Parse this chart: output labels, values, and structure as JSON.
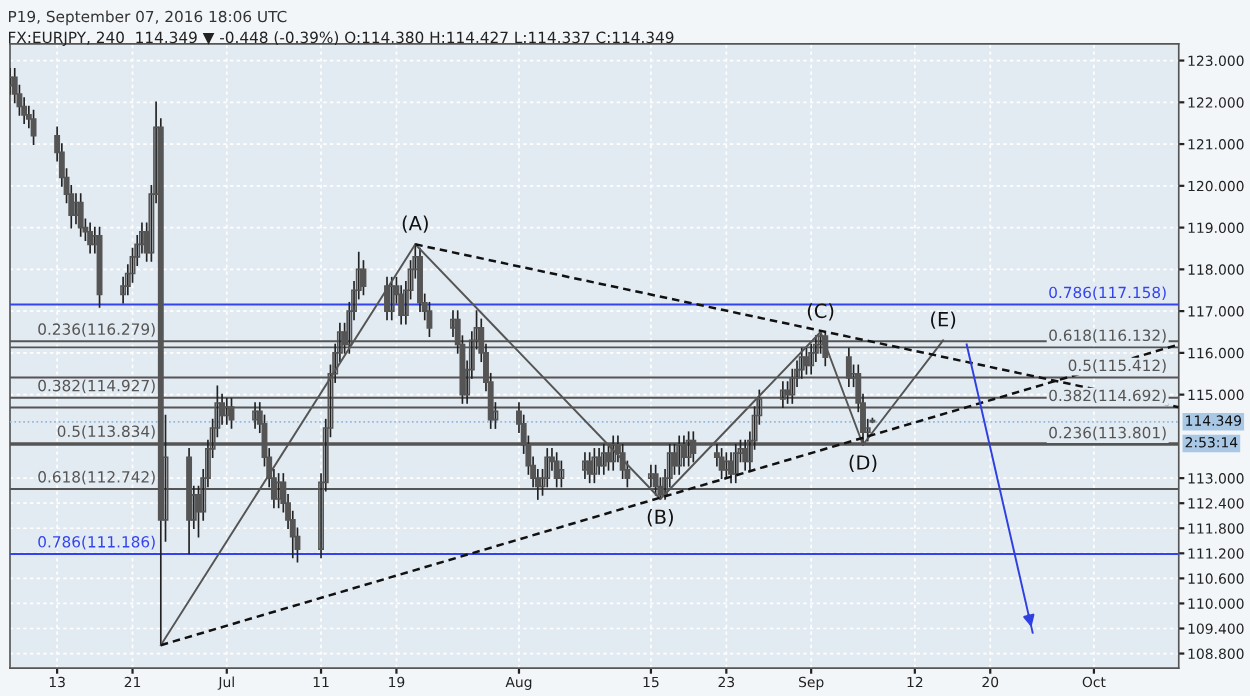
{
  "chart_data": {
    "type": "candlestick",
    "title": "P19, September 07, 2016 18:06 UTC",
    "subtitle": "FX:EURJPY, 240  114.349 ▼ -0.448 (-0.39%) O:114.380 H:114.427 L:114.337 C:114.349",
    "color": "#555555",
    "x": [
      "2016-06-08T00:00",
      "2016-06-08T12:00",
      "2016-06-09T00:00",
      "2016-06-09T12:00",
      "2016-06-10T00:00",
      "2016-06-10T12:00",
      "2016-06-13T00:00",
      "2016-06-13T12:00",
      "2016-06-14T00:00",
      "2016-06-14T12:00",
      "2016-06-15T00:00",
      "2016-06-15T12:00",
      "2016-06-16T00:00",
      "2016-06-16T12:00",
      "2016-06-17T00:00",
      "2016-06-17T12:00",
      "2016-06-20T00:00",
      "2016-06-20T12:00",
      "2016-06-21T00:00",
      "2016-06-21T12:00",
      "2016-06-22T00:00",
      "2016-06-22T12:00",
      "2016-06-23T00:00",
      "2016-06-23T12:00",
      "2016-06-24T00:00",
      "2016-06-24T12:00",
      "2016-06-27T00:00",
      "2016-06-27T12:00",
      "2016-06-28T00:00",
      "2016-06-28T12:00",
      "2016-06-29T00:00",
      "2016-06-29T12:00",
      "2016-06-30T00:00",
      "2016-06-30T12:00",
      "2016-07-01T00:00",
      "2016-07-01T12:00",
      "2016-07-04T00:00",
      "2016-07-04T12:00",
      "2016-07-05T00:00",
      "2016-07-05T12:00",
      "2016-07-06T00:00",
      "2016-07-06T12:00",
      "2016-07-07T00:00",
      "2016-07-07T12:00",
      "2016-07-08T00:00",
      "2016-07-08T12:00",
      "2016-07-11T00:00",
      "2016-07-11T12:00",
      "2016-07-12T00:00",
      "2016-07-12T12:00",
      "2016-07-13T00:00",
      "2016-07-13T12:00",
      "2016-07-14T00:00",
      "2016-07-14T12:00",
      "2016-07-15T00:00",
      "2016-07-15T12:00",
      "2016-07-18T00:00",
      "2016-07-18T12:00",
      "2016-07-19T00:00",
      "2016-07-19T12:00",
      "2016-07-20T00:00",
      "2016-07-20T12:00",
      "2016-07-21T00:00",
      "2016-07-21T12:00",
      "2016-07-22T00:00",
      "2016-07-22T12:00",
      "2016-07-25T00:00",
      "2016-07-25T12:00",
      "2016-07-26T00:00",
      "2016-07-26T12:00",
      "2016-07-27T00:00",
      "2016-07-27T12:00",
      "2016-07-28T00:00",
      "2016-07-28T12:00",
      "2016-07-29T00:00",
      "2016-07-29T12:00",
      "2016-08-01T00:00",
      "2016-08-01T12:00",
      "2016-08-02T00:00",
      "2016-08-02T12:00",
      "2016-08-03T00:00",
      "2016-08-03T12:00",
      "2016-08-04T00:00",
      "2016-08-04T12:00",
      "2016-08-05T00:00",
      "2016-08-05T12:00",
      "2016-08-08T00:00",
      "2016-08-08T12:00",
      "2016-08-09T00:00",
      "2016-08-09T12:00",
      "2016-08-10T00:00",
      "2016-08-10T12:00",
      "2016-08-11T00:00",
      "2016-08-11T12:00",
      "2016-08-12T00:00",
      "2016-08-12T12:00",
      "2016-08-15T00:00",
      "2016-08-15T12:00",
      "2016-08-16T00:00",
      "2016-08-16T12:00",
      "2016-08-17T00:00",
      "2016-08-17T12:00",
      "2016-08-18T00:00",
      "2016-08-18T12:00",
      "2016-08-19T00:00",
      "2016-08-19T12:00",
      "2016-08-22T00:00",
      "2016-08-22T12:00",
      "2016-08-23T00:00",
      "2016-08-23T12:00",
      "2016-08-24T00:00",
      "2016-08-24T12:00",
      "2016-08-25T00:00",
      "2016-08-25T12:00",
      "2016-08-26T00:00",
      "2016-08-26T12:00",
      "2016-08-29T00:00",
      "2016-08-29T12:00",
      "2016-08-30T00:00",
      "2016-08-30T12:00",
      "2016-08-31T00:00",
      "2016-08-31T12:00",
      "2016-09-01T00:00",
      "2016-09-01T12:00",
      "2016-09-02T00:00",
      "2016-09-02T12:00",
      "2016-09-05T00:00",
      "2016-09-05T12:00",
      "2016-09-06T00:00",
      "2016-09-06T12:00",
      "2016-09-07T00:00",
      "2016-09-07T12:00"
    ],
    "ohlc": [
      [
        122.4,
        122.8,
        122.2,
        122.6
      ],
      [
        122.6,
        122.8,
        122.0,
        122.2
      ],
      [
        122.2,
        122.4,
        121.7,
        121.9
      ],
      [
        121.9,
        122.1,
        121.5,
        121.7
      ],
      [
        121.7,
        121.9,
        121.4,
        121.6
      ],
      [
        121.6,
        121.8,
        121.0,
        121.2
      ],
      [
        121.2,
        121.4,
        120.6,
        120.8
      ],
      [
        120.8,
        121.0,
        120.0,
        120.2
      ],
      [
        120.2,
        120.4,
        119.6,
        119.8
      ],
      [
        119.8,
        120.0,
        119.0,
        119.3
      ],
      [
        119.3,
        119.8,
        119.1,
        119.6
      ],
      [
        119.6,
        119.8,
        118.8,
        119.0
      ],
      [
        119.0,
        119.2,
        118.7,
        118.9
      ],
      [
        118.9,
        119.1,
        118.4,
        118.6
      ],
      [
        118.6,
        119.0,
        118.4,
        118.8
      ],
      [
        118.8,
        119.0,
        117.1,
        117.4
      ],
      [
        117.4,
        117.8,
        117.2,
        117.6
      ],
      [
        117.6,
        118.1,
        117.4,
        117.9
      ],
      [
        117.9,
        118.5,
        117.7,
        118.3
      ],
      [
        118.3,
        118.8,
        118.1,
        118.6
      ],
      [
        118.6,
        119.1,
        118.4,
        118.9
      ],
      [
        118.9,
        119.1,
        118.2,
        118.4
      ],
      [
        118.4,
        120.0,
        118.2,
        119.8
      ],
      [
        119.8,
        122.0,
        119.6,
        121.4
      ],
      [
        121.4,
        121.6,
        109.0,
        112.0
      ],
      [
        112.0,
        114.5,
        111.5,
        113.5
      ],
      [
        113.5,
        113.7,
        111.2,
        112.0
      ],
      [
        112.0,
        112.8,
        111.8,
        112.6
      ],
      [
        112.6,
        112.8,
        111.6,
        112.2
      ],
      [
        112.2,
        113.2,
        112.0,
        113.0
      ],
      [
        113.0,
        113.9,
        112.8,
        113.7
      ],
      [
        113.7,
        114.4,
        113.5,
        114.2
      ],
      [
        114.2,
        115.2,
        114.0,
        114.8
      ],
      [
        114.8,
        115.0,
        114.3,
        114.5
      ],
      [
        114.5,
        114.9,
        114.3,
        114.7
      ],
      [
        114.7,
        114.9,
        114.2,
        114.4
      ],
      [
        114.4,
        114.8,
        114.2,
        114.6
      ],
      [
        114.6,
        114.8,
        114.1,
        114.3
      ],
      [
        114.3,
        114.5,
        113.3,
        113.5
      ],
      [
        113.5,
        113.7,
        112.8,
        113.0
      ],
      [
        113.0,
        113.2,
        112.3,
        112.5
      ],
      [
        112.5,
        113.1,
        112.3,
        112.9
      ],
      [
        112.9,
        113.1,
        112.2,
        112.4
      ],
      [
        112.4,
        112.6,
        111.8,
        112.0
      ],
      [
        112.0,
        112.2,
        111.1,
        111.6
      ],
      [
        111.6,
        111.8,
        111.0,
        111.3
      ],
      [
        111.3,
        113.1,
        111.1,
        112.9
      ],
      [
        112.9,
        114.4,
        112.7,
        114.2
      ],
      [
        114.2,
        115.7,
        114.0,
        115.5
      ],
      [
        115.5,
        116.2,
        115.3,
        116.0
      ],
      [
        116.0,
        116.7,
        115.8,
        116.5
      ],
      [
        116.5,
        116.7,
        116.0,
        116.2
      ],
      [
        116.2,
        117.2,
        116.0,
        117.0
      ],
      [
        117.0,
        117.7,
        116.8,
        117.5
      ],
      [
        117.5,
        118.4,
        117.3,
        118.0
      ],
      [
        118.0,
        118.2,
        117.4,
        117.6
      ],
      [
        117.6,
        117.8,
        116.8,
        117.0
      ],
      [
        117.0,
        117.8,
        116.8,
        117.6
      ],
      [
        117.6,
        117.8,
        117.2,
        117.4
      ],
      [
        117.4,
        117.6,
        116.7,
        116.9
      ],
      [
        116.9,
        117.7,
        116.7,
        117.5
      ],
      [
        117.5,
        118.2,
        117.3,
        118.0
      ],
      [
        118.0,
        118.6,
        117.8,
        118.3
      ],
      [
        118.3,
        118.5,
        117.0,
        117.2
      ],
      [
        117.2,
        117.4,
        116.8,
        117.0
      ],
      [
        117.0,
        117.2,
        116.4,
        116.6
      ],
      [
        116.6,
        117.0,
        116.4,
        116.8
      ],
      [
        116.8,
        117.0,
        116.0,
        116.2
      ],
      [
        116.2,
        116.4,
        114.8,
        115.0
      ],
      [
        115.0,
        115.8,
        114.8,
        115.6
      ],
      [
        115.6,
        116.5,
        115.4,
        116.3
      ],
      [
        116.3,
        117.0,
        116.1,
        116.6
      ],
      [
        116.6,
        116.8,
        115.8,
        116.0
      ],
      [
        116.0,
        116.2,
        115.1,
        115.3
      ],
      [
        115.3,
        115.5,
        114.2,
        114.4
      ],
      [
        114.4,
        114.8,
        114.2,
        114.6
      ],
      [
        114.6,
        114.8,
        114.1,
        114.3
      ],
      [
        114.3,
        114.5,
        113.6,
        113.8
      ],
      [
        113.8,
        114.0,
        113.1,
        113.3
      ],
      [
        113.3,
        113.5,
        112.8,
        113.0
      ],
      [
        113.0,
        113.2,
        112.5,
        112.8
      ],
      [
        112.8,
        113.2,
        112.6,
        113.0
      ],
      [
        113.0,
        113.7,
        112.8,
        113.5
      ],
      [
        113.5,
        113.7,
        113.2,
        113.4
      ],
      [
        113.4,
        113.6,
        112.8,
        113.0
      ],
      [
        113.0,
        113.4,
        112.8,
        113.2
      ],
      [
        113.2,
        113.6,
        113.0,
        113.4
      ],
      [
        113.4,
        113.6,
        112.9,
        113.1
      ],
      [
        113.1,
        113.7,
        112.9,
        113.5
      ],
      [
        113.5,
        113.7,
        113.1,
        113.3
      ],
      [
        113.3,
        113.8,
        113.1,
        113.6
      ],
      [
        113.6,
        113.8,
        113.2,
        113.4
      ],
      [
        113.4,
        114.0,
        113.2,
        113.8
      ],
      [
        113.8,
        114.0,
        113.4,
        113.6
      ],
      [
        113.6,
        113.8,
        113.0,
        113.2
      ],
      [
        113.2,
        113.4,
        112.8,
        113.0
      ],
      [
        113.0,
        113.3,
        112.8,
        113.1
      ],
      [
        113.1,
        113.3,
        112.6,
        112.8
      ],
      [
        112.8,
        113.0,
        112.5,
        112.6
      ],
      [
        112.6,
        113.2,
        112.5,
        113.0
      ],
      [
        113.0,
        113.8,
        112.8,
        113.6
      ],
      [
        113.6,
        113.8,
        113.1,
        113.3
      ],
      [
        113.3,
        114.0,
        113.1,
        113.8
      ],
      [
        113.8,
        114.0,
        113.3,
        113.5
      ],
      [
        113.5,
        114.1,
        113.3,
        113.9
      ],
      [
        113.9,
        114.1,
        113.4,
        113.6
      ],
      [
        113.6,
        113.8,
        113.3,
        113.5
      ],
      [
        113.5,
        113.7,
        113.0,
        113.2
      ],
      [
        113.2,
        113.6,
        113.0,
        113.4
      ],
      [
        113.4,
        113.6,
        112.9,
        113.1
      ],
      [
        113.1,
        113.8,
        112.9,
        113.6
      ],
      [
        113.6,
        113.9,
        113.4,
        113.7
      ],
      [
        113.7,
        113.9,
        113.2,
        113.4
      ],
      [
        113.4,
        114.1,
        113.2,
        113.9
      ],
      [
        113.9,
        114.7,
        113.7,
        114.5
      ],
      [
        114.5,
        115.1,
        114.3,
        114.9
      ],
      [
        114.9,
        115.3,
        114.7,
        115.1
      ],
      [
        115.1,
        115.3,
        114.8,
        115.0
      ],
      [
        115.0,
        115.6,
        114.8,
        115.4
      ],
      [
        115.4,
        115.8,
        115.2,
        115.6
      ],
      [
        115.6,
        116.1,
        115.4,
        115.9
      ],
      [
        115.9,
        116.1,
        115.5,
        115.7
      ],
      [
        115.7,
        116.2,
        115.5,
        116.0
      ],
      [
        116.0,
        116.4,
        115.8,
        116.2
      ],
      [
        116.2,
        116.5,
        116.0,
        116.4
      ],
      [
        116.4,
        116.5,
        115.7,
        115.9
      ],
      [
        115.9,
        116.1,
        115.2,
        115.4
      ],
      [
        115.4,
        115.7,
        115.2,
        115.5
      ],
      [
        115.5,
        115.7,
        114.6,
        114.8
      ],
      [
        114.8,
        115.0,
        113.8,
        114.1
      ],
      [
        114.1,
        114.4,
        113.9,
        114.2
      ],
      [
        114.38,
        114.427,
        114.337,
        114.349
      ]
    ],
    "series": [
      {
        "type": "line",
        "color": "#555555",
        "line_style": "solid",
        "x": [
          "2016-06-24T00:00",
          "2016-07-21T00:00",
          "2016-08-16T00:00",
          "2016-09-02T00:00",
          "2016-09-06T12:00",
          "2016-09-15T00:00"
        ],
        "values": [
          109.0,
          118.6,
          112.5,
          116.5,
          113.8,
          116.3
        ]
      },
      {
        "type": "line",
        "color": "#111111",
        "line_style": "dashed",
        "x": [
          "2016-07-21T00:00",
          "2016-10-10T00:00"
        ],
        "values": [
          118.6,
          114.7
        ]
      },
      {
        "type": "line",
        "color": "#111111",
        "line_style": "dashed",
        "x": [
          "2016-06-24T00:00",
          "2016-10-10T00:00"
        ],
        "values": [
          109.0,
          116.2
        ]
      },
      {
        "type": "line",
        "color": "#2f3fe0",
        "line_style": "solid",
        "x": [
          "2016-09-17T12:00",
          "2016-09-24T12:00"
        ],
        "values": [
          116.2,
          109.3
        ]
      }
    ],
    "ref_lines": [
      {
        "axis": "y",
        "value": 116.279,
        "label": "0.236(116.279)",
        "color": "#555555"
      },
      {
        "axis": "y",
        "value": 114.927,
        "label": "0.382(114.927)",
        "color": "#555555"
      },
      {
        "axis": "y",
        "value": 113.834,
        "label": "0.5(113.834)",
        "color": "#555555"
      },
      {
        "axis": "y",
        "value": 112.742,
        "label": "0.618(112.742)",
        "color": "#555555"
      },
      {
        "axis": "y",
        "value": 111.186,
        "label": "0.786(111.186)",
        "color": "#3344ee"
      },
      {
        "axis": "y",
        "value": 117.158,
        "label": "0.786(117.158)",
        "color": "#3344ee"
      },
      {
        "axis": "y",
        "value": 116.132,
        "label": "0.618(116.132)",
        "color": "#555555"
      },
      {
        "axis": "y",
        "value": 115.412,
        "label": "0.5(115.412)",
        "color": "#555555"
      },
      {
        "axis": "y",
        "value": 114.692,
        "label": "0.382(114.692)",
        "color": "#555555"
      },
      {
        "axis": "y",
        "value": 113.801,
        "label": "0.236(113.801)",
        "color": "#555555"
      },
      {
        "axis": "y",
        "value": 114.349,
        "label": "114.349",
        "color": "#8fb8e0",
        "line_style": "dotted"
      }
    ],
    "annotations": [
      {
        "text": "(A)",
        "x": "2016-07-21T00:00",
        "y": 118.6
      },
      {
        "text": "(B)",
        "x": "2016-08-16T00:00",
        "y": 112.5
      },
      {
        "text": "(C)",
        "x": "2016-09-02T00:00",
        "y": 116.5
      },
      {
        "text": "(D)",
        "x": "2016-09-06T12:00",
        "y": 113.8
      },
      {
        "text": "(E)",
        "x": "2016-09-15T00:00",
        "y": 116.3
      },
      "2:53:14"
    ],
    "xlim": [
      "2016-06-08T00:00",
      "2016-10-10T00:00"
    ],
    "ylim": [
      108.45,
      123.4
    ],
    "xticks": [
      {
        "value": "2016-06-13",
        "label": "13"
      },
      {
        "value": "2016-06-21",
        "label": "21"
      },
      {
        "value": "2016-07-01",
        "label": "Jul"
      },
      {
        "value": "2016-07-11",
        "label": "11"
      },
      {
        "value": "2016-07-19",
        "label": "19"
      },
      {
        "value": "2016-08-01",
        "label": "Aug"
      },
      {
        "value": "2016-08-15",
        "label": "15"
      },
      {
        "value": "2016-08-23",
        "label": "23"
      },
      {
        "value": "2016-09-01",
        "label": "Sep"
      },
      {
        "value": "2016-09-12",
        "label": "12"
      },
      {
        "value": "2016-09-20",
        "label": "20"
      },
      {
        "value": "2016-10-01",
        "label": "Oct"
      }
    ],
    "yticks": [
      {
        "value": 123,
        "label": "123.000"
      },
      {
        "value": 122,
        "label": "122.000"
      },
      {
        "value": 121,
        "label": "121.000"
      },
      {
        "value": 120,
        "label": "120.000"
      },
      {
        "value": 119,
        "label": "119.000"
      },
      {
        "value": 118,
        "label": "118.000"
      },
      {
        "value": 117,
        "label": "117.000"
      },
      {
        "value": 116,
        "label": "116.000"
      },
      {
        "value": 115,
        "label": "115.000"
      },
      {
        "value": 113,
        "label": "113.000"
      },
      {
        "value": 112.4,
        "label": "112.400"
      },
      {
        "value": 111.8,
        "label": "111.800"
      },
      {
        "value": 111.2,
        "label": "111.200"
      },
      {
        "value": 110.6,
        "label": "110.600"
      },
      {
        "value": 110,
        "label": "110.000"
      },
      {
        "value": 109.4,
        "label": "109.400"
      },
      {
        "value": 108.8,
        "label": "108.800"
      }
    ],
    "grid": true
  }
}
